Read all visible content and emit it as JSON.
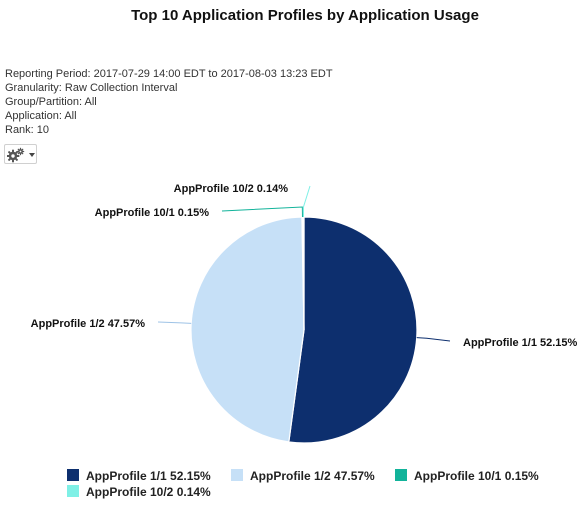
{
  "header": {
    "title": "Top 10 Application Profiles by Application Usage"
  },
  "report_meta": {
    "reporting_period": "Reporting Period: 2017-07-29 14:00 EDT to 2017-08-03 13:23 EDT",
    "granularity": "Granularity: Raw Collection Interval",
    "group_partition": "Group/Partition: All",
    "application": "Application: All",
    "rank": "Rank: 10"
  },
  "toolbar": {
    "settings_icon": "gear-icon",
    "dropdown_icon": "chevron-down-icon"
  },
  "chart_data": {
    "type": "pie",
    "title": "Top 10 Application Profiles by Application Usage",
    "slices": [
      {
        "name": "AppProfile 1/1",
        "value": 52.15,
        "label": "AppProfile 1/1 52.15%",
        "color": "#0d2f6e"
      },
      {
        "name": "AppProfile 1/2",
        "value": 47.57,
        "label": "AppProfile 1/2 47.57%",
        "color": "#c6e0f7"
      },
      {
        "name": "AppProfile 10/1",
        "value": 0.15,
        "label": "AppProfile 10/1 0.15%",
        "color": "#12b39a"
      },
      {
        "name": "AppProfile 10/2",
        "value": 0.14,
        "label": "AppProfile 10/2 0.14%",
        "color": "#7ff0e6"
      }
    ],
    "legend": {
      "placement": "bottom",
      "items": [
        "AppProfile 1/1 52.15%",
        "AppProfile 1/2 47.57%",
        "AppProfile 10/1 0.15%",
        "AppProfile 10/2 0.14%"
      ]
    }
  }
}
